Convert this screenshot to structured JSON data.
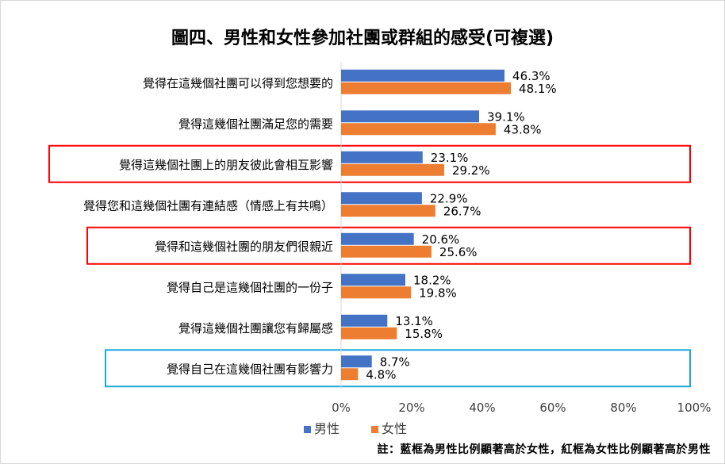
{
  "chart_data": {
    "type": "bar",
    "orientation": "horizontal",
    "title": "圖四、男性和女性參加社團或群組的感受(可複選)",
    "categories": [
      "覺得在這幾個社團可以得到您想要的",
      "覺得這幾個社團滿足您的需要",
      "覺得這幾個社團上的朋友彼此會相互影響",
      "覺得您和這幾個社團有連結感（情感上有共鳴）",
      "覺得和這幾個社團的朋友們很親近",
      "覺得自己是這幾個社團的一份子",
      "覺得這幾個社團讓您有歸屬感",
      "覺得自己在這幾個社團有影響力"
    ],
    "series": [
      {
        "name": "男性",
        "color": "#4472C4",
        "values": [
          46.3,
          39.1,
          23.1,
          22.9,
          20.6,
          18.2,
          13.1,
          8.7
        ]
      },
      {
        "name": "女性",
        "color": "#ED7D31",
        "values": [
          48.1,
          43.8,
          29.2,
          26.7,
          25.6,
          19.8,
          15.8,
          4.8
        ]
      }
    ],
    "data_labels": [
      [
        "46.3%",
        "39.1%",
        "23.1%",
        "22.9%",
        "20.6%",
        "18.2%",
        "13.1%",
        "8.7%"
      ],
      [
        "48.1%",
        "43.8%",
        "29.2%",
        "26.7%",
        "25.6%",
        "19.8%",
        "15.8%",
        "4.8%"
      ]
    ],
    "xlim": [
      0,
      100
    ],
    "xticks": [
      "0%",
      "20%",
      "40%",
      "60%",
      "80%",
      "100%"
    ],
    "xtick_values": [
      0,
      20,
      40,
      60,
      80,
      100
    ],
    "grid": false,
    "legend": "bottom-left",
    "highlights": [
      {
        "category_index": 2,
        "color": "#FF0000"
      },
      {
        "category_index": 4,
        "color": "#FF0000"
      },
      {
        "category_index": 7,
        "color": "#1FA8E0"
      }
    ],
    "note": "註：藍框為男性比例顯著高於女性，紅框為女性比例顯著高於男性"
  }
}
